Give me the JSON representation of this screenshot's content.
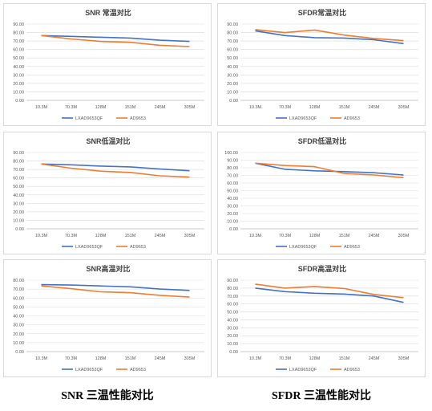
{
  "captions": {
    "left": "SNR 三温性能对比",
    "right": "SFDR 三温性能对比"
  },
  "colors": {
    "series1": "#4472c4",
    "series2": "#ed7d31",
    "grid": "#d9d9d9",
    "axis": "#bfbfbf"
  },
  "chart_data": [
    {
      "type": "line",
      "title": "SNR 常温对比",
      "categories": [
        "10.3M",
        "70.3M",
        "128M",
        "151M",
        "245M",
        "305M"
      ],
      "ylim": [
        0,
        90
      ],
      "ystep": 10,
      "yticks": [
        "0.00",
        "10.00",
        "20.00",
        "30.00",
        "40.00",
        "50.00",
        "60.00",
        "70.00",
        "80.00",
        "90.00"
      ],
      "series": [
        {
          "name": "LXAD9653QF",
          "values": [
            76.5,
            75.5,
            74.5,
            73.5,
            71,
            69.5
          ]
        },
        {
          "name": "AD9653",
          "values": [
            76.5,
            72.5,
            69.5,
            68.5,
            65,
            63.5
          ]
        }
      ],
      "legend": "bottom"
    },
    {
      "type": "line",
      "title": "SFDR常温对比",
      "categories": [
        "10.3M",
        "70.3M",
        "128M",
        "151M",
        "245M",
        "305M"
      ],
      "ylim": [
        0,
        90
      ],
      "ystep": 10,
      "yticks": [
        "0.00",
        "10.00",
        "20.00",
        "30.00",
        "40.00",
        "50.00",
        "60.00",
        "70.00",
        "80.00",
        "90.00"
      ],
      "series": [
        {
          "name": "LXAD9653QF",
          "values": [
            82,
            76.5,
            74,
            73.5,
            71.5,
            67
          ]
        },
        {
          "name": "AD9653",
          "values": [
            83.5,
            80,
            83,
            77,
            73,
            70.5
          ]
        }
      ],
      "legend": "bottom"
    },
    {
      "type": "line",
      "title": "SNR低温对比",
      "categories": [
        "10.3M",
        "70.3M",
        "128M",
        "151M",
        "245M",
        "305M"
      ],
      "ylim": [
        0,
        90
      ],
      "ystep": 10,
      "yticks": [
        "0.00",
        "10.00",
        "20.00",
        "30.00",
        "40.00",
        "50.00",
        "60.00",
        "70.00",
        "80.00",
        "90.00"
      ],
      "series": [
        {
          "name": "LXAD9653QF",
          "values": [
            76.5,
            75.5,
            74,
            73,
            70.5,
            68.5
          ]
        },
        {
          "name": "AD9653",
          "values": [
            76.5,
            71.5,
            68,
            66.5,
            62.5,
            61
          ]
        }
      ],
      "legend": "bottom"
    },
    {
      "type": "line",
      "title": "SFDR低温对比",
      "categories": [
        "10.3M",
        "70.3M",
        "128M",
        "151M",
        "245M",
        "305M"
      ],
      "ylim": [
        0,
        100
      ],
      "ystep": 10,
      "yticks": [
        "0.00",
        "10.00",
        "20.00",
        "30.00",
        "40.00",
        "50.00",
        "60.00",
        "70.00",
        "80.00",
        "90.00",
        "100.00"
      ],
      "series": [
        {
          "name": "LXAD9653QF",
          "values": [
            86,
            78,
            76,
            75,
            73.5,
            70.5
          ]
        },
        {
          "name": "AD9653",
          "values": [
            86,
            83,
            81.5,
            72.5,
            70.5,
            67
          ]
        }
      ],
      "legend": "bottom"
    },
    {
      "type": "line",
      "title": "SNR高温对比",
      "categories": [
        "10.3M",
        "70.3M",
        "128M",
        "151M",
        "245M",
        "305M"
      ],
      "ylim": [
        0,
        80
      ],
      "ystep": 10,
      "yticks": [
        "0.00",
        "10.00",
        "20.00",
        "30.00",
        "40.00",
        "50.00",
        "60.00",
        "70.00",
        "80.00"
      ],
      "series": [
        {
          "name": "LXAD9653QF",
          "values": [
            75,
            74.5,
            73.5,
            72.5,
            70,
            68.5
          ]
        },
        {
          "name": "AD9653",
          "values": [
            73.5,
            70.5,
            67,
            66,
            63,
            61
          ]
        }
      ],
      "legend": "bottom"
    },
    {
      "type": "line",
      "title": "SFDR高温对比",
      "categories": [
        "10.3M",
        "70.3M",
        "128M",
        "151M",
        "245M",
        "305M"
      ],
      "ylim": [
        0,
        90
      ],
      "ystep": 10,
      "yticks": [
        "0.00",
        "10.00",
        "20.00",
        "30.00",
        "40.00",
        "50.00",
        "60.00",
        "70.00",
        "80.00",
        "90.00"
      ],
      "series": [
        {
          "name": "LXAD9653QF",
          "values": [
            80,
            75.5,
            73.5,
            72.5,
            70,
            62
          ]
        },
        {
          "name": "AD9653",
          "values": [
            85,
            80,
            82,
            79.5,
            72,
            68
          ]
        }
      ],
      "legend": "bottom"
    }
  ]
}
